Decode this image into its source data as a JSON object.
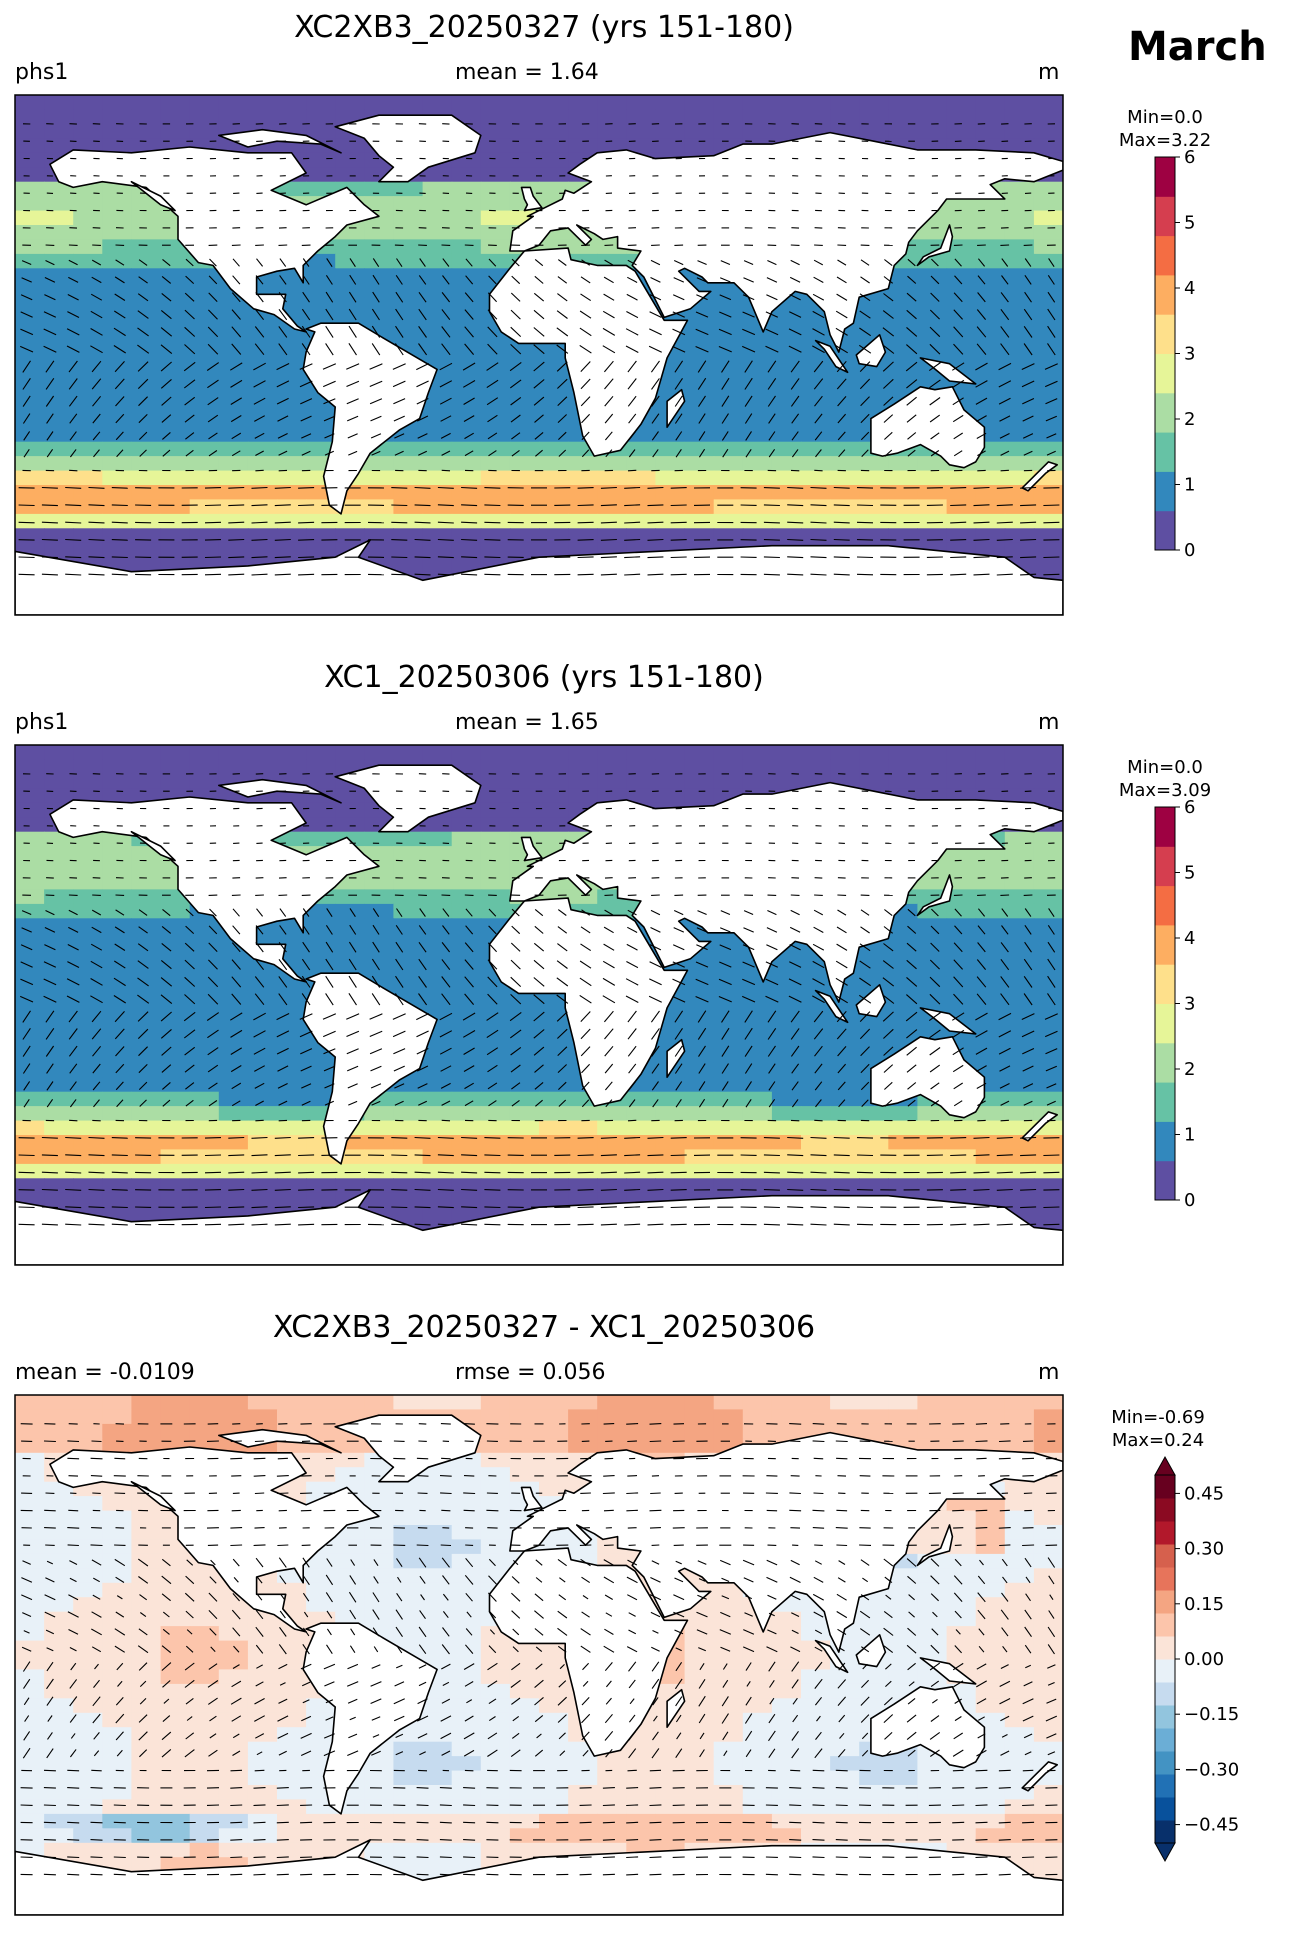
{
  "month_label": "March",
  "panels": [
    {
      "title": "XC2XB3_20250327 (yrs 151-180)",
      "left_label": "phs1",
      "center_label": "mean = 1.64",
      "right_label": "m",
      "minmax_lines": [
        "Min=0.0",
        "Max=3.22"
      ],
      "colorbar": {
        "type": "absolute",
        "ticks": [
          "0",
          "1",
          "2",
          "3",
          "4",
          "5",
          "6"
        ],
        "colors": [
          "#5e4fa2",
          "#3288bd",
          "#66c2a5",
          "#abdda4",
          "#e6f598",
          "#fee08b",
          "#fdae61",
          "#f46d43",
          "#d53e4f",
          "#9e0142"
        ]
      }
    },
    {
      "title": "XC1_20250306 (yrs 151-180)",
      "left_label": "phs1",
      "center_label": "mean = 1.65",
      "right_label": "m",
      "minmax_lines": [
        "Min=0.0",
        "Max=3.09"
      ],
      "colorbar": {
        "type": "absolute",
        "ticks": [
          "0",
          "1",
          "2",
          "3",
          "4",
          "5",
          "6"
        ],
        "colors": [
          "#5e4fa2",
          "#3288bd",
          "#66c2a5",
          "#abdda4",
          "#e6f598",
          "#fee08b",
          "#fdae61",
          "#f46d43",
          "#d53e4f",
          "#9e0142"
        ]
      }
    },
    {
      "title": "XC2XB3_20250327 - XC1_20250306",
      "left_label": "mean = -0.0109",
      "center_label": "rmse = 0.056",
      "right_label": "m",
      "minmax_lines": [
        "Min=-0.69",
        "Max=0.24"
      ],
      "colorbar": {
        "type": "difference",
        "ticks": [
          "−0.45",
          "−0.30",
          "−0.15",
          "0.00",
          "0.15",
          "0.30",
          "0.45"
        ],
        "colors": [
          "#08306b",
          "#08519c",
          "#2171b5",
          "#4393c3",
          "#6baed6",
          "#92c5de",
          "#c6dbef",
          "#e8f1f8",
          "#fbe4d8",
          "#fcc5ab",
          "#f4a582",
          "#e7745b",
          "#d6604d",
          "#b2182b",
          "#8b0a22",
          "#67001f"
        ]
      }
    }
  ]
}
